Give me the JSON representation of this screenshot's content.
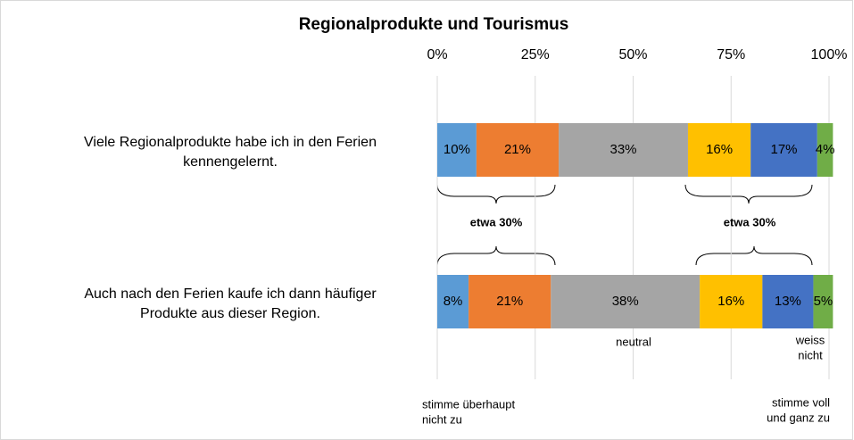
{
  "chart_data": {
    "type": "stacked-barh",
    "title": "Regionalprodukte und Tourismus",
    "categories": [
      [
        "Viele Regionalprodukte habe ich in den Ferien",
        "kennengelernt."
      ],
      [
        "Auch nach den Ferien kaufe ich dann häufiger",
        "Produkte aus dieser Region."
      ]
    ],
    "series": [
      {
        "color": "#5b9bd5",
        "values": [
          10,
          8
        ],
        "value_labels": [
          "10%",
          "8%"
        ]
      },
      {
        "color": "#ed7d31",
        "values": [
          21,
          21
        ],
        "value_labels": [
          "21%",
          "21%"
        ]
      },
      {
        "color": "#a5a5a5",
        "values": [
          33,
          38
        ],
        "value_labels": [
          "33%",
          "38%"
        ]
      },
      {
        "color": "#ffc000",
        "values": [
          16,
          16
        ],
        "value_labels": [
          "16%",
          "16%"
        ]
      },
      {
        "color": "#4472c4",
        "values": [
          17,
          13
        ],
        "value_labels": [
          "17%",
          "13%"
        ]
      },
      {
        "color": "#70ad47",
        "values": [
          4,
          5
        ],
        "value_labels": [
          "4%",
          "5%"
        ]
      }
    ],
    "xlim": [
      0,
      100
    ],
    "xticks": [
      {
        "value": 0,
        "label": "0%"
      },
      {
        "value": 25,
        "label": "25%"
      },
      {
        "value": 50,
        "label": "50%"
      },
      {
        "value": 75,
        "label": "75%"
      },
      {
        "value": 100,
        "label": "100%"
      }
    ],
    "grid": true,
    "annotations": [
      {
        "lines": [
          "etwa 30%"
        ]
      },
      {
        "lines": [
          "etwa 30%"
        ]
      },
      {
        "lines": [
          "neutral"
        ]
      },
      {
        "lines": [
          "weiss",
          "nicht"
        ]
      },
      {
        "lines": [
          "stimme überhaupt",
          "nicht zu"
        ]
      },
      {
        "lines": [
          "stimme voll",
          "und ganz zu"
        ]
      }
    ]
  }
}
